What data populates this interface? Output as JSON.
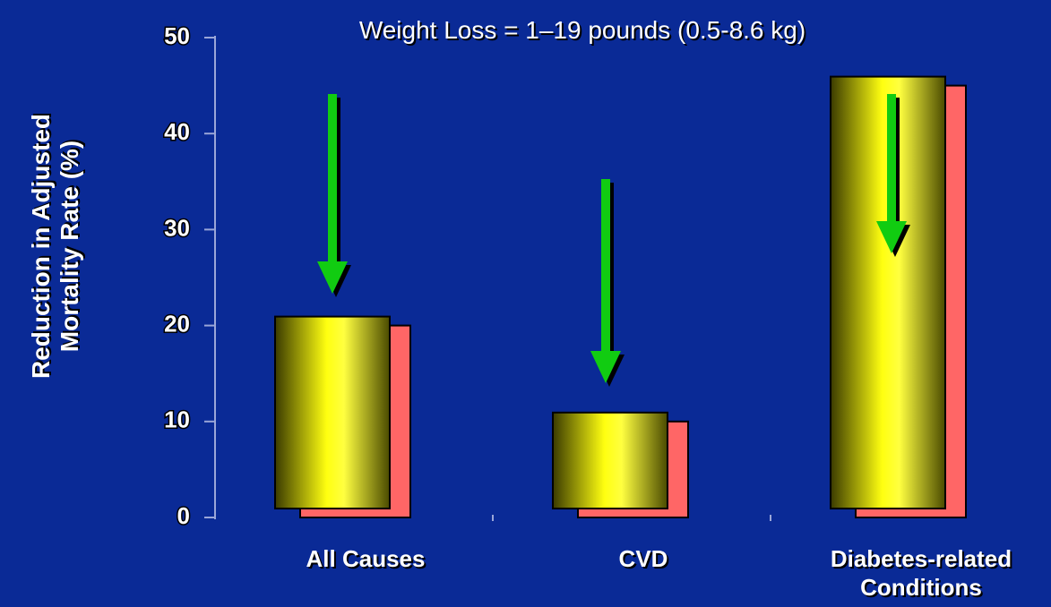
{
  "chart_data": {
    "type": "bar",
    "title": "Weight Loss = 1–19 pounds (0.5-8.6 kg)",
    "y_label": "Reduction in Adjusted Mortality Rate (%)",
    "categories": [
      "All Causes",
      "CVD",
      "Diabetes-related\nConditions"
    ],
    "values": [
      20,
      10,
      45
    ],
    "color": "#ffff00",
    "side_color": "#ff6666",
    "ylim": [
      0,
      50
    ],
    "yticks": [
      0,
      10,
      20,
      30,
      40,
      50
    ],
    "grid": false
  }
}
